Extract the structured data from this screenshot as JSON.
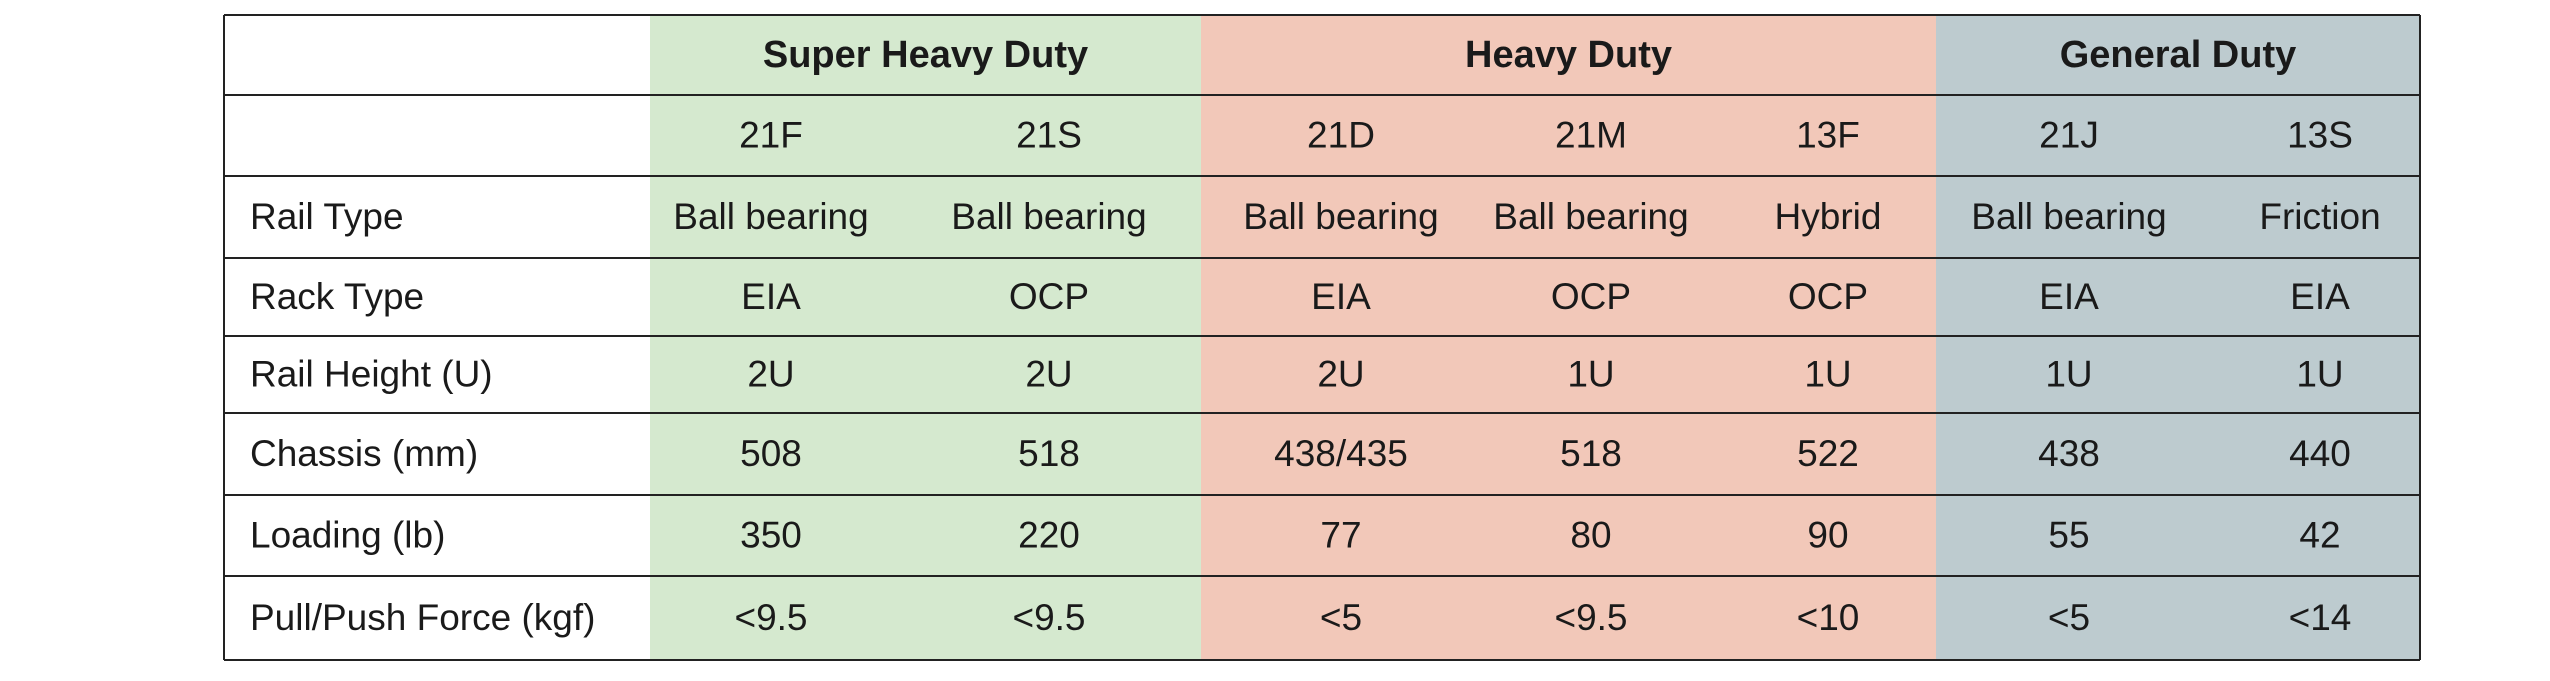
{
  "table": {
    "groups": [
      {
        "title": "Super Heavy Duty",
        "color": "#d5e9cf",
        "models": [
          "21F",
          "21S"
        ]
      },
      {
        "title": "Heavy Duty",
        "color": "#f2c8b9",
        "models": [
          "21D",
          "21M",
          "13F"
        ]
      },
      {
        "title": "General Duty",
        "color": "#bdcbcf",
        "models": [
          "21J",
          "13S"
        ]
      }
    ],
    "rows": [
      {
        "label": "Rail Type",
        "cells": [
          "Ball bearing",
          "Ball bearing",
          "Ball bearing",
          "Ball bearing",
          "Hybrid",
          "Ball bearing",
          "Friction"
        ]
      },
      {
        "label": "Rack Type",
        "cells": [
          "EIA",
          "OCP",
          "EIA",
          "OCP",
          "OCP",
          "EIA",
          "EIA"
        ]
      },
      {
        "label": "Rail Height (U)",
        "cells": [
          "2U",
          "2U",
          "2U",
          "1U",
          "1U",
          "1U",
          "1U"
        ]
      },
      {
        "label": "Chassis (mm)",
        "cells": [
          "508",
          "518",
          "438/435",
          "518",
          "522",
          "438",
          "440"
        ]
      },
      {
        "label": "Loading (lb)",
        "cells": [
          "350",
          "220",
          "77",
          "80",
          "90",
          "55",
          "42"
        ]
      },
      {
        "label": "Pull/Push Force (kgf)",
        "cells": [
          "<9.5",
          "<9.5",
          "<5",
          "<9.5",
          "<10",
          "<5",
          "<14"
        ]
      }
    ]
  }
}
